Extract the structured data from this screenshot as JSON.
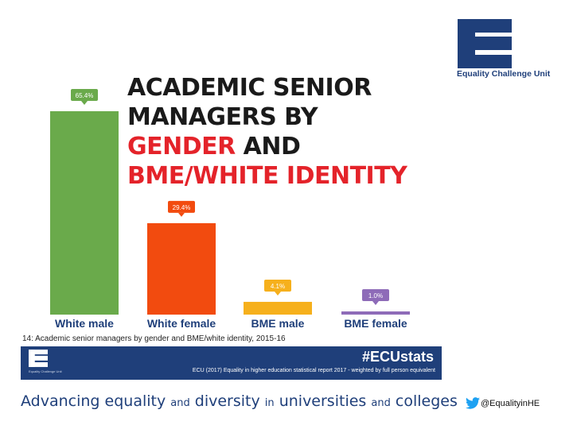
{
  "title": {
    "line1": "ACADEMIC SENIOR",
    "line2": "MANAGERS BY",
    "line3_red": "GENDER",
    "line3_dark": " AND",
    "line4": "BME/WHITE IDENTITY"
  },
  "brand": {
    "logo_caption": "Equality Challenge Unit",
    "banner_logo_caption": "Equality Challenge Unit",
    "hashtag": "#ECUstats",
    "source": "ECU (2017) Equality in higher education statistical report 2017 - weighted by full person equivalent",
    "navy": "#1f3f7a"
  },
  "caption": "14: Academic senior managers by gender and BME/white identity, 2015-16",
  "tagline": {
    "w1": "Advancing equality",
    "w2": "and",
    "w3": "diversity",
    "w4": "in",
    "w5": "universities",
    "w6": "and",
    "w7": "colleges"
  },
  "twitter_handle": "@EqualityinHE",
  "chart_data": {
    "type": "bar",
    "categories": [
      "White male",
      "White female",
      "BME male",
      "BME female"
    ],
    "values": [
      65.4,
      29.4,
      4.1,
      1.0
    ],
    "value_labels": [
      "65.4%",
      "29.4%",
      "4.1%",
      "1.0%"
    ],
    "colors": [
      "#6aaa4b",
      "#f24b0f",
      "#f6b01c",
      "#8e6bb8"
    ],
    "ylim": [
      0,
      65.4
    ],
    "grid": false,
    "legend": "none"
  }
}
